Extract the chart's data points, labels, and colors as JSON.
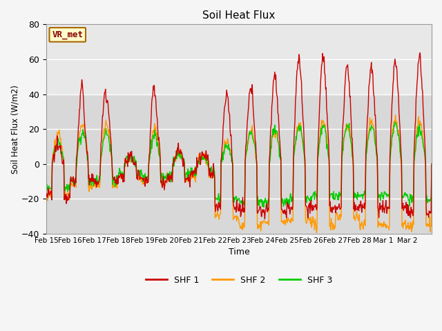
{
  "title": "Soil Heat Flux",
  "xlabel": "Time",
  "ylabel": "Soil Heat Flux (W/m2)",
  "ylim": [
    -40,
    80
  ],
  "yticks": [
    -40,
    -20,
    0,
    20,
    40,
    60,
    80
  ],
  "xtick_labels": [
    "Feb 15",
    "Feb 16",
    "Feb 17",
    "Feb 18",
    "Feb 19",
    "Feb 20",
    "Feb 21",
    "Feb 22",
    "Feb 23",
    "Feb 24",
    "Feb 25",
    "Feb 26",
    "Feb 27",
    "Feb 28",
    "Mar 1",
    "Mar 2"
  ],
  "shf1_color": "#cc0000",
  "shf2_color": "#ff9900",
  "shf3_color": "#00cc00",
  "legend_label1": "SHF 1",
  "legend_label2": "SHF 2",
  "legend_label3": "SHF 3",
  "annotation_text": "VR_met",
  "annotation_text_color": "#880000",
  "annotation_border_color": "#aa6600",
  "annotation_bg": "#ffffcc",
  "plot_bg_lower": "#d8d8d8",
  "plot_bg_upper": "#e8e8e8",
  "fig_bg": "#f0f0f0",
  "grid_color": "#ffffff",
  "linewidth": 1.0
}
